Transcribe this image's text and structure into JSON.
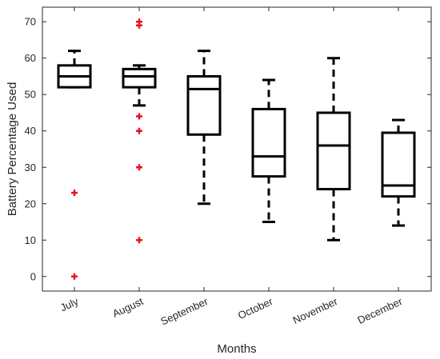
{
  "chart_data": {
    "type": "box",
    "title": "",
    "xlabel": "Months",
    "ylabel": "Battery Percentage Used",
    "ylim": [
      -4,
      74
    ],
    "yticks": [
      0,
      10,
      20,
      30,
      40,
      50,
      60,
      70
    ],
    "grid": false,
    "legend": "none",
    "colors": {
      "box": "#000000",
      "outlier": "#e8141b",
      "axis": "#262626"
    },
    "categories": [
      "July",
      "August",
      "September",
      "October",
      "November",
      "December"
    ],
    "boxes": [
      {
        "category": "July",
        "whisker_low": 52,
        "q1": 52,
        "median": 55,
        "q3": 58,
        "whisker_high": 62,
        "outliers": [
          23,
          0
        ]
      },
      {
        "category": "August",
        "whisker_low": 47,
        "q1": 52,
        "median": 55,
        "q3": 57,
        "whisker_high": 58,
        "outliers": [
          70,
          69,
          44,
          40,
          30,
          10
        ]
      },
      {
        "category": "September",
        "whisker_low": 20,
        "q1": 39,
        "median": 51.5,
        "q3": 55,
        "whisker_high": 62,
        "outliers": []
      },
      {
        "category": "October",
        "whisker_low": 15,
        "q1": 27.5,
        "median": 33,
        "q3": 46,
        "whisker_high": 54,
        "outliers": []
      },
      {
        "category": "November",
        "whisker_low": 10,
        "q1": 24,
        "median": 36,
        "q3": 45,
        "whisker_high": 60,
        "outliers": []
      },
      {
        "category": "December",
        "whisker_low": 14,
        "q1": 22,
        "median": 25,
        "q3": 39.5,
        "whisker_high": 43,
        "outliers": []
      }
    ]
  }
}
